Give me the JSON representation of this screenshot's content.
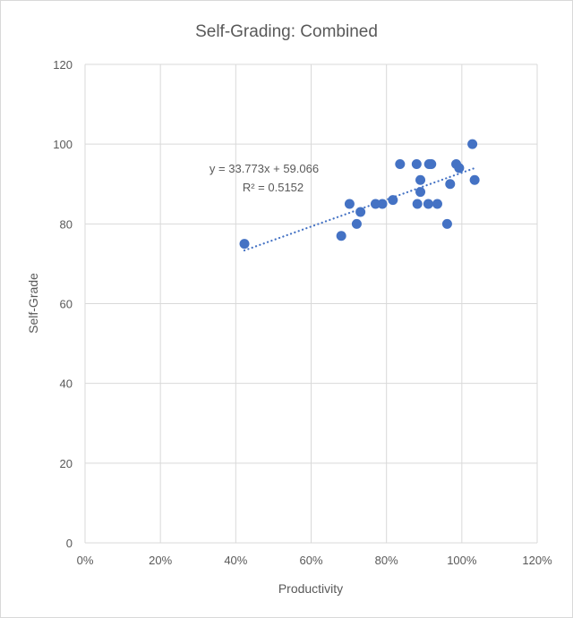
{
  "chart_data": {
    "type": "scatter",
    "title": "Self-Grading: Combined",
    "xlabel": "Productivity",
    "ylabel": "Self-Grade",
    "xlim": [
      0,
      1.2
    ],
    "ylim": [
      0,
      120
    ],
    "xticks": [
      "0%",
      "20%",
      "40%",
      "60%",
      "80%",
      "100%",
      "120%"
    ],
    "yticks": [
      "0",
      "20",
      "40",
      "60",
      "80",
      "100",
      "120"
    ],
    "grid": true,
    "marker_color": "#4472C4",
    "points": [
      {
        "x": 1.028,
        "y": 100
      },
      {
        "x": 0.836,
        "y": 95
      },
      {
        "x": 0.88,
        "y": 95
      },
      {
        "x": 0.913,
        "y": 95
      },
      {
        "x": 0.919,
        "y": 95
      },
      {
        "x": 0.985,
        "y": 95
      },
      {
        "x": 0.993,
        "y": 94
      },
      {
        "x": 0.89,
        "y": 91
      },
      {
        "x": 1.034,
        "y": 91
      },
      {
        "x": 0.969,
        "y": 90
      },
      {
        "x": 0.89,
        "y": 88
      },
      {
        "x": 0.702,
        "y": 85
      },
      {
        "x": 0.771,
        "y": 85
      },
      {
        "x": 0.789,
        "y": 85
      },
      {
        "x": 0.817,
        "y": 86
      },
      {
        "x": 0.882,
        "y": 85
      },
      {
        "x": 0.911,
        "y": 85
      },
      {
        "x": 0.935,
        "y": 85
      },
      {
        "x": 0.731,
        "y": 83
      },
      {
        "x": 0.721,
        "y": 80
      },
      {
        "x": 0.961,
        "y": 80
      },
      {
        "x": 0.68,
        "y": 77
      },
      {
        "x": 0.423,
        "y": 75
      }
    ],
    "trendline": {
      "type": "linear",
      "slope": 33.773,
      "intercept": 59.066,
      "x_range": [
        0.423,
        1.034
      ],
      "equation_label": "y = 33.773x + 59.066",
      "r2_label": "R² = 0.5152"
    }
  }
}
